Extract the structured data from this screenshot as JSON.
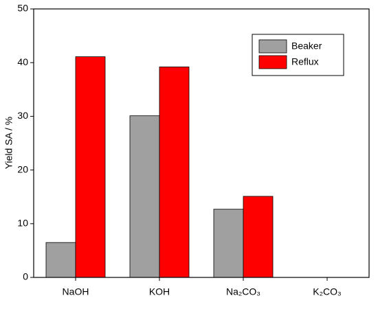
{
  "chart_data": {
    "type": "bar",
    "y_label": "Yield SA / %",
    "categories": [
      "NaOH",
      "KOH",
      "Na₂CO₃",
      "K₂CO₃"
    ],
    "series": [
      {
        "name": "Beaker",
        "color": "#a0a0a0",
        "values": [
          6.5,
          30.1,
          12.7,
          0
        ]
      },
      {
        "name": "Reflux",
        "color": "#ff0000",
        "values": [
          41.1,
          39.2,
          15.1,
          0
        ]
      }
    ],
    "ylim": [
      0,
      50
    ],
    "yticks": [
      0,
      10,
      20,
      30,
      40,
      50
    ],
    "legend": "top-right"
  }
}
